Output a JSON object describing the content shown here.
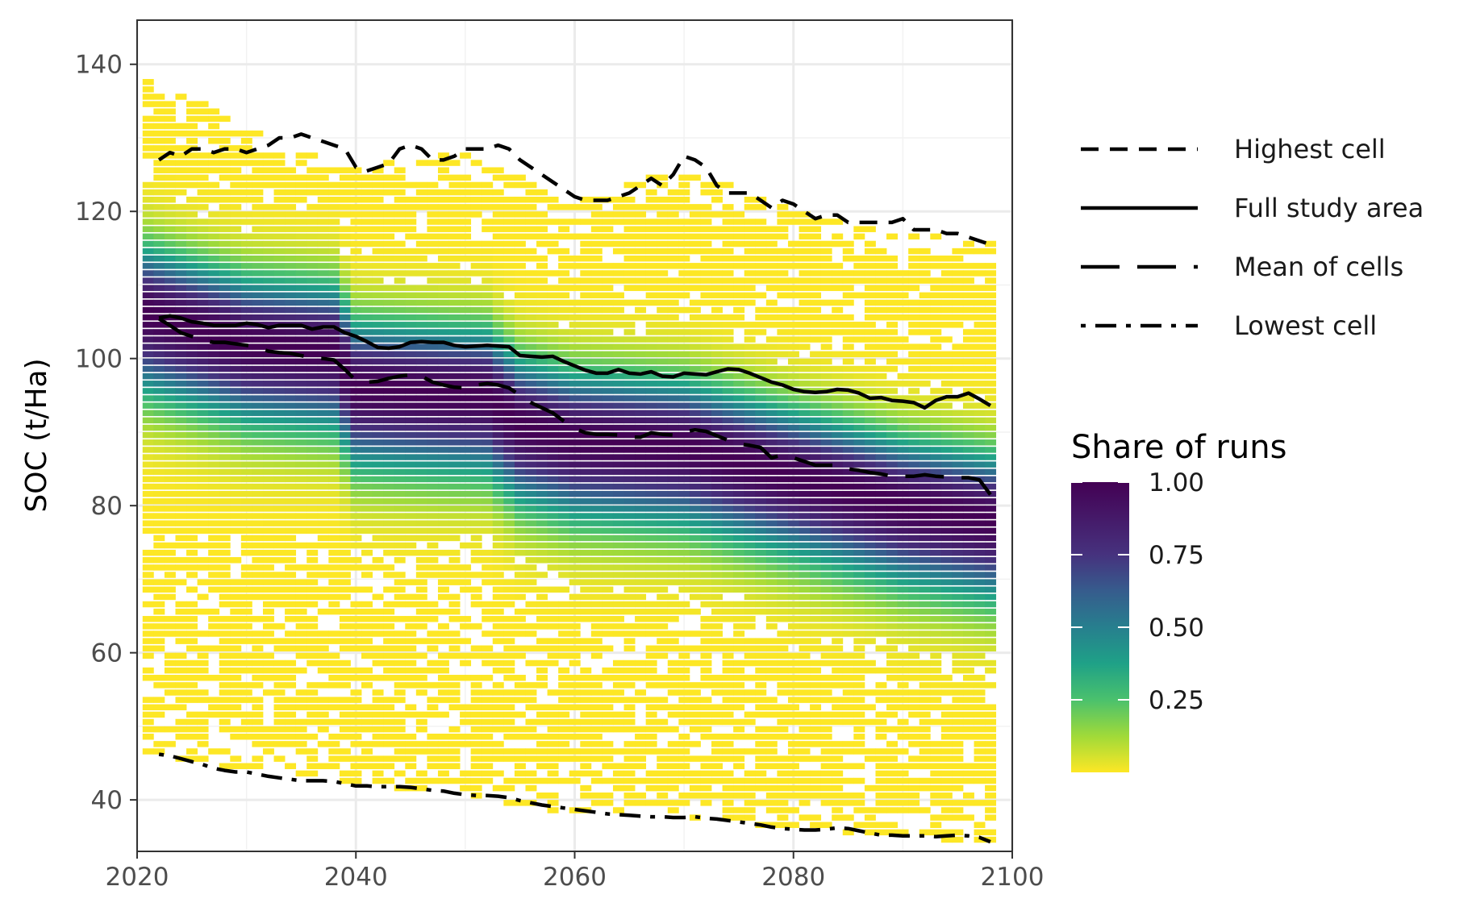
{
  "chart_data": {
    "type": "heatmap",
    "xlabel": "",
    "ylabel": "SOC (t/Ha)",
    "xlim": [
      2020,
      2100
    ],
    "ylim": [
      33,
      146
    ],
    "x_ticks": [
      2020,
      2040,
      2060,
      2080,
      2100
    ],
    "y_ticks": [
      40,
      60,
      80,
      100,
      120,
      140
    ],
    "grid": true,
    "heatmap": {
      "x_start": 2021,
      "x_end": 2098,
      "y_bin": 1,
      "colorscale": "viridis",
      "colorbar_title": "Share of runs",
      "colorbar_ticks": [
        0.25,
        0.5,
        0.75,
        1.0
      ],
      "colorbar_tick_labels": [
        "0.25",
        "0.50",
        "0.75",
        "1.00"
      ],
      "colorbar_range": [
        0.0,
        1.0
      ],
      "core_center": [
        [
          2021,
          106
        ],
        [
          2030,
          102
        ],
        [
          2038,
          101
        ],
        [
          2040,
          96
        ],
        [
          2052,
          95
        ],
        [
          2055,
          91
        ],
        [
          2060,
          89
        ],
        [
          2070,
          88
        ],
        [
          2080,
          84
        ],
        [
          2090,
          80
        ],
        [
          2098,
          78
        ]
      ],
      "outer_top": [
        [
          2021,
          139
        ],
        [
          2030,
          131
        ],
        [
          2040,
          126
        ],
        [
          2050,
          128
        ],
        [
          2060,
          121
        ],
        [
          2070,
          126
        ],
        [
          2080,
          120
        ],
        [
          2090,
          117
        ],
        [
          2098,
          116
        ]
      ],
      "outer_bottom": [
        [
          2021,
          46
        ],
        [
          2030,
          44
        ],
        [
          2040,
          42
        ],
        [
          2050,
          40.5
        ],
        [
          2060,
          38
        ],
        [
          2070,
          37.5
        ],
        [
          2080,
          36
        ],
        [
          2090,
          35
        ],
        [
          2098,
          34
        ]
      ]
    },
    "legend_placement": "right",
    "series": [
      {
        "name": "Highest cell",
        "dash": "dashed",
        "x": [
          2022,
          2023,
          2024,
          2025,
          2026,
          2027,
          2028,
          2029,
          2030,
          2031,
          2032,
          2033,
          2034,
          2035,
          2036,
          2037,
          2038,
          2039,
          2040,
          2041,
          2042,
          2043,
          2044,
          2045,
          2046,
          2047,
          2048,
          2049,
          2050,
          2051,
          2052,
          2053,
          2054,
          2055,
          2056,
          2057,
          2058,
          2059,
          2060,
          2061,
          2062,
          2063,
          2064,
          2065,
          2066,
          2067,
          2068,
          2069,
          2070,
          2071,
          2072,
          2073,
          2074,
          2075,
          2076,
          2077,
          2078,
          2079,
          2080,
          2081,
          2082,
          2083,
          2084,
          2085,
          2086,
          2087,
          2088,
          2089,
          2090,
          2091,
          2092,
          2093,
          2094,
          2095,
          2096,
          2097,
          2098
        ],
        "y": [
          127,
          128,
          127.5,
          128.5,
          128.5,
          128,
          128.5,
          128.5,
          128,
          128.5,
          129,
          130,
          130,
          130.5,
          130,
          129.5,
          129,
          128.5,
          126,
          125.5,
          126,
          126.5,
          128.5,
          129,
          128.5,
          127,
          127,
          127.5,
          128.5,
          128.5,
          128.5,
          129,
          128.5,
          127,
          126,
          125,
          124,
          123,
          122,
          121.5,
          121.5,
          121.5,
          122,
          122.5,
          123.5,
          124.5,
          123.5,
          125,
          127.5,
          127,
          126,
          123.5,
          122.5,
          122.5,
          122.5,
          121.5,
          120.5,
          121.5,
          121,
          120,
          119,
          119.5,
          119.5,
          118.5,
          118.5,
          118.5,
          118.5,
          118.5,
          119,
          117.5,
          117.5,
          117.5,
          117,
          117,
          116.5,
          116,
          115.5
        ]
      },
      {
        "name": "Full study area",
        "dash": "solid",
        "x": [
          2022,
          2023,
          2024,
          2025,
          2026,
          2027,
          2028,
          2029,
          2030,
          2031,
          2032,
          2033,
          2034,
          2035,
          2036,
          2037,
          2038,
          2039,
          2040,
          2041,
          2042,
          2043,
          2044,
          2045,
          2046,
          2047,
          2048,
          2049,
          2050,
          2051,
          2052,
          2053,
          2054,
          2055,
          2056,
          2057,
          2058,
          2059,
          2060,
          2061,
          2062,
          2063,
          2064,
          2065,
          2066,
          2067,
          2068,
          2069,
          2070,
          2071,
          2072,
          2073,
          2074,
          2075,
          2076,
          2077,
          2078,
          2079,
          2080,
          2081,
          2082,
          2083,
          2084,
          2085,
          2086,
          2087,
          2088,
          2089,
          2090,
          2091,
          2092,
          2093,
          2094,
          2095,
          2096,
          2097,
          2098
        ],
        "y": [
          105.5,
          105.8,
          105.5,
          105,
          104.8,
          104.5,
          104.5,
          104.5,
          104.8,
          104.6,
          104.2,
          104.5,
          104.5,
          104.5,
          104,
          104.3,
          104.3,
          103.5,
          103,
          102.3,
          101.5,
          101.4,
          101.6,
          102.2,
          102.3,
          102.2,
          102.2,
          101.8,
          101.6,
          101.7,
          101.8,
          101.7,
          101.6,
          100.4,
          100.3,
          100.2,
          100.3,
          99.6,
          99,
          98.4,
          98,
          98,
          98.5,
          98,
          97.9,
          98.2,
          97.6,
          97.5,
          98,
          97.9,
          97.8,
          98.2,
          98.6,
          98.5,
          98,
          97.4,
          96.8,
          96.4,
          95.8,
          95.5,
          95.4,
          95.5,
          95.8,
          95.7,
          95.3,
          94.6,
          94.7,
          94.3,
          94.2,
          94.0,
          93.3,
          94.3,
          94.8,
          94.8,
          95.3,
          94.5,
          93.6
        ]
      },
      {
        "name": "Mean of cells",
        "dash": "longdash",
        "x": [
          2022,
          2023,
          2024,
          2025,
          2026,
          2027,
          2028,
          2029,
          2030,
          2031,
          2032,
          2033,
          2034,
          2035,
          2036,
          2037,
          2038,
          2039,
          2040,
          2041,
          2042,
          2043,
          2044,
          2045,
          2046,
          2047,
          2048,
          2049,
          2050,
          2051,
          2052,
          2053,
          2054,
          2055,
          2056,
          2057,
          2058,
          2059,
          2060,
          2061,
          2062,
          2063,
          2064,
          2065,
          2066,
          2067,
          2068,
          2069,
          2070,
          2071,
          2072,
          2073,
          2074,
          2075,
          2076,
          2077,
          2078,
          2079,
          2080,
          2081,
          2082,
          2083,
          2084,
          2085,
          2086,
          2087,
          2088,
          2089,
          2090,
          2091,
          2092,
          2093,
          2094,
          2095,
          2096,
          2097,
          2098
        ],
        "y": [
          105.4,
          104.5,
          103.5,
          103,
          102.5,
          102.2,
          102.2,
          102,
          101.8,
          101.5,
          101,
          100.8,
          100.7,
          100.4,
          100.1,
          100,
          99.8,
          98.5,
          97,
          96.8,
          96.9,
          97.3,
          97.6,
          97.8,
          97.6,
          96.8,
          96.4,
          96.1,
          96.0,
          96.4,
          96.6,
          96.4,
          96.0,
          95.0,
          94.0,
          93.3,
          92.6,
          91.5,
          90.5,
          89.9,
          89.7,
          89.7,
          89.6,
          89.3,
          89.3,
          89.9,
          89.7,
          89.6,
          90.0,
          90.3,
          90.1,
          89.5,
          88.9,
          88.4,
          88.2,
          87.9,
          86.5,
          86.9,
          86.5,
          86.0,
          85.5,
          85.5,
          85.5,
          85.0,
          84.8,
          84.5,
          84.3,
          84.0,
          84.0,
          84.0,
          84.2,
          84.0,
          83.9,
          83.8,
          83.8,
          83.5,
          81.5
        ]
      },
      {
        "name": "Lowest cell",
        "dash": "dotdash",
        "x": [
          2022,
          2023,
          2024,
          2025,
          2026,
          2027,
          2028,
          2029,
          2030,
          2031,
          2032,
          2033,
          2034,
          2035,
          2036,
          2037,
          2038,
          2039,
          2040,
          2041,
          2042,
          2043,
          2044,
          2045,
          2046,
          2047,
          2048,
          2049,
          2050,
          2051,
          2052,
          2053,
          2054,
          2055,
          2056,
          2057,
          2058,
          2059,
          2060,
          2061,
          2062,
          2063,
          2064,
          2065,
          2066,
          2067,
          2068,
          2069,
          2070,
          2071,
          2072,
          2073,
          2074,
          2075,
          2076,
          2077,
          2078,
          2079,
          2080,
          2081,
          2082,
          2083,
          2084,
          2085,
          2086,
          2087,
          2088,
          2089,
          2090,
          2091,
          2092,
          2093,
          2094,
          2095,
          2096,
          2097,
          2098
        ],
        "y": [
          46.2,
          46.0,
          45.6,
          45.2,
          44.8,
          44.3,
          44.0,
          43.8,
          43.8,
          43.5,
          43.2,
          43.0,
          42.8,
          42.6,
          42.6,
          42.6,
          42.5,
          42.2,
          41.9,
          41.9,
          41.8,
          41.8,
          41.8,
          41.7,
          41.5,
          41.3,
          41.2,
          40.9,
          40.7,
          40.6,
          40.6,
          40.5,
          40.3,
          39.9,
          39.6,
          39.3,
          39.1,
          38.9,
          38.7,
          38.5,
          38.3,
          38.1,
          38.0,
          37.9,
          37.8,
          37.7,
          37.7,
          37.6,
          37.6,
          37.7,
          37.5,
          37.4,
          37.2,
          37.0,
          36.8,
          36.6,
          36.3,
          36.1,
          36.0,
          35.9,
          35.9,
          36.0,
          36.2,
          36.1,
          35.8,
          35.5,
          35.2,
          35.2,
          35.1,
          35.1,
          35.1,
          35.0,
          35.1,
          35.2,
          35.1,
          34.9,
          34.3
        ]
      }
    ]
  }
}
